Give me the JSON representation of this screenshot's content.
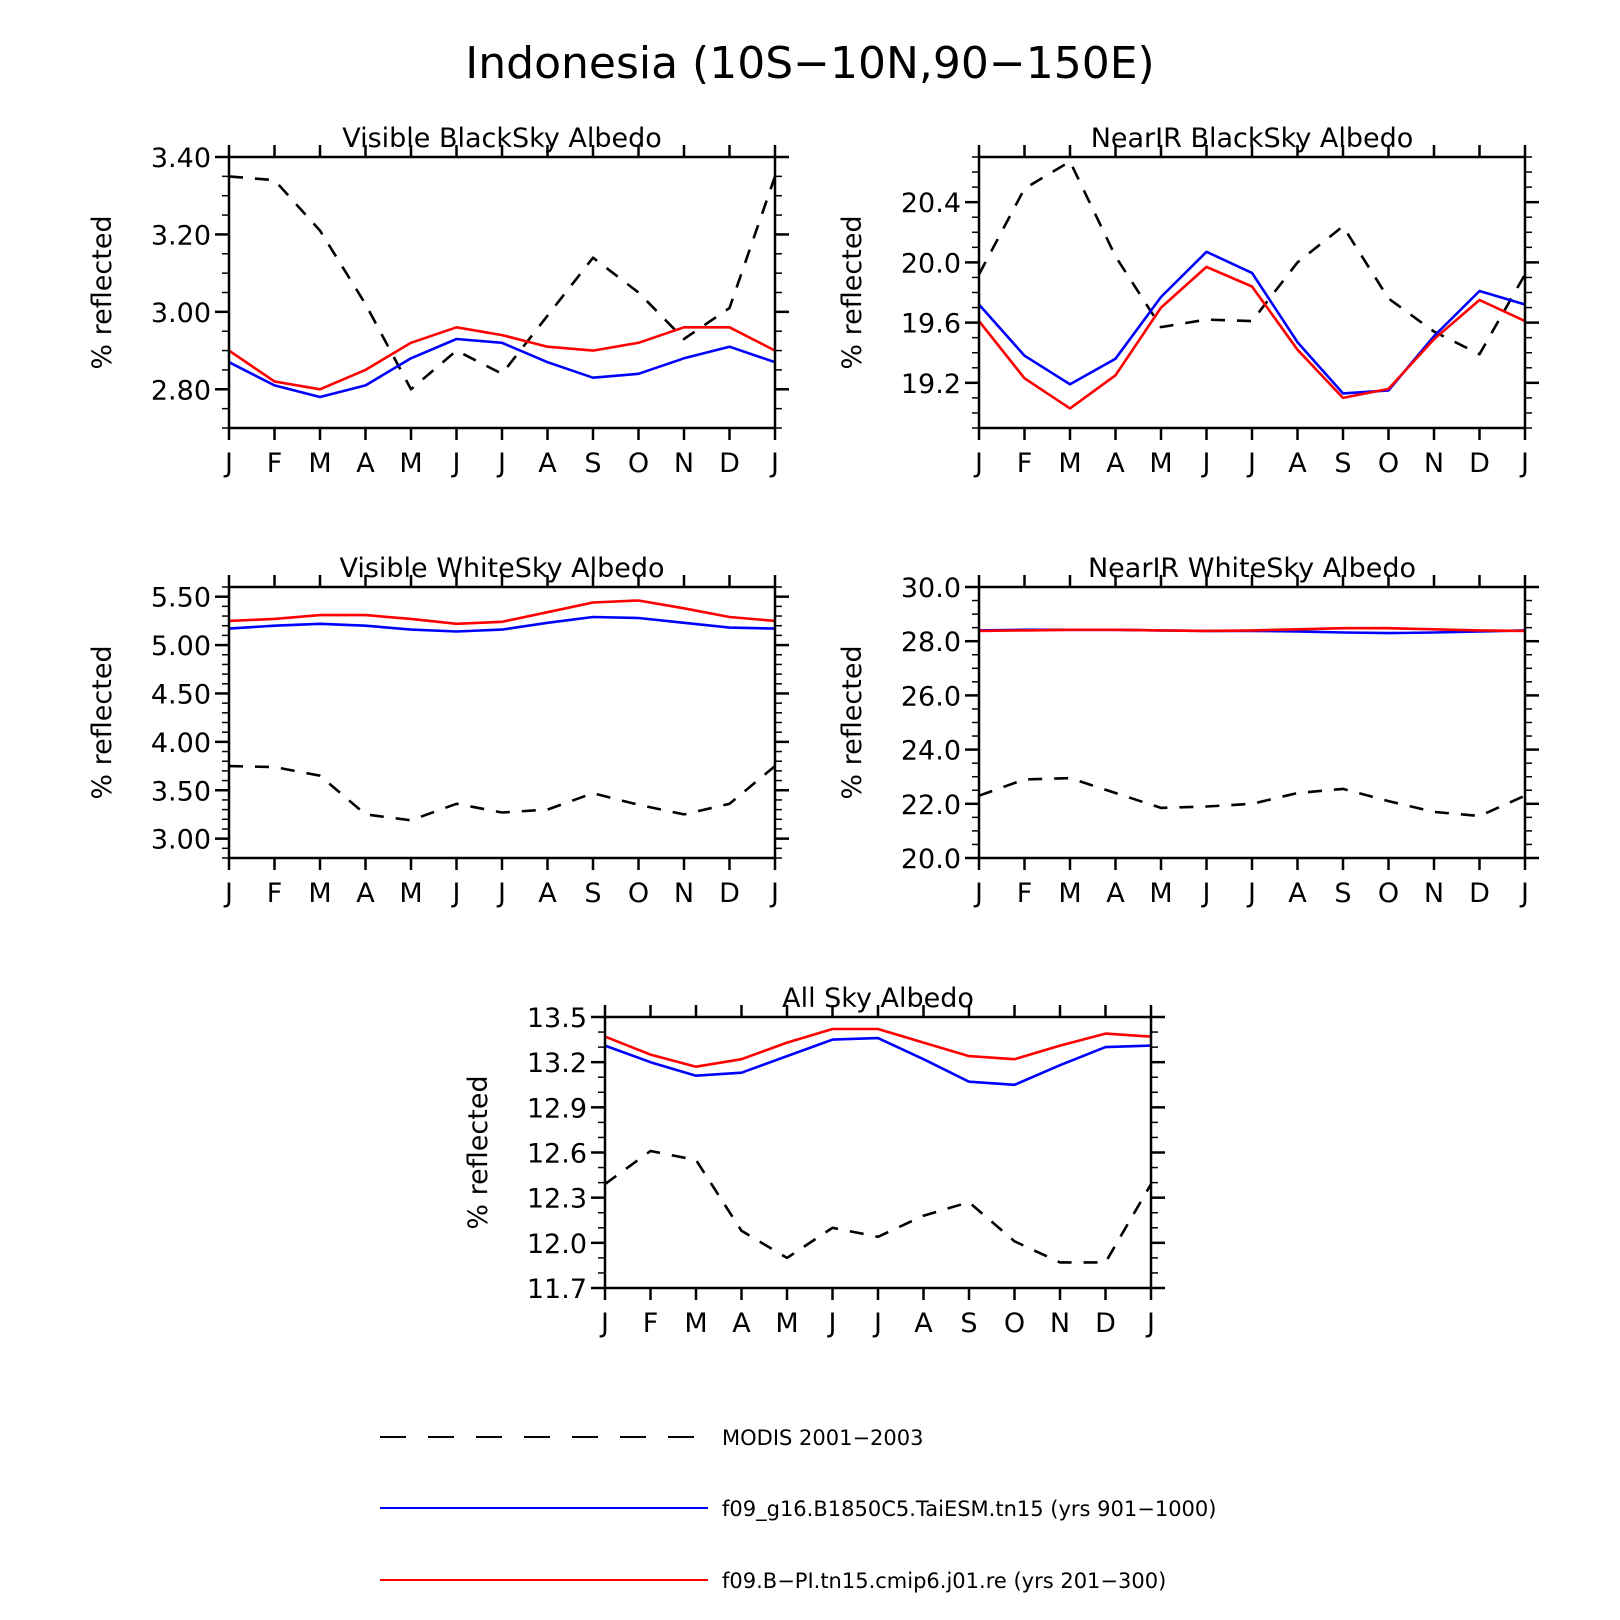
{
  "title": "Indonesia (10S−10N,90−150E)",
  "months": [
    "J",
    "F",
    "M",
    "A",
    "M",
    "J",
    "J",
    "A",
    "S",
    "O",
    "N",
    "D",
    "J"
  ],
  "series_styles": [
    {
      "color": "#000000",
      "dash": "14,12"
    },
    {
      "color": "#0000ff",
      "dash": ""
    },
    {
      "color": "#ff0000",
      "dash": ""
    }
  ],
  "legend": [
    {
      "label": "MODIS 2001−2003",
      "color": "#000000",
      "dash": "dashed"
    },
    {
      "label": "f09_g16.B1850C5.TaiESM.tn15 (yrs 901−1000)",
      "color": "#0000ff",
      "dash": "solid"
    },
    {
      "label": "f09.B−PI.tn15.cmip6.j01.re (yrs 201−300)",
      "color": "#ff0000",
      "dash": "solid"
    }
  ],
  "chart_data": [
    {
      "type": "line",
      "title": "Visible BlackSky Albedo",
      "ylabel": "% reflected",
      "ylim": [
        2.7,
        3.4
      ],
      "yticks": [
        "2.80",
        "3.00",
        "3.20",
        "3.40"
      ],
      "yminor": 0.05,
      "categories": [
        "J",
        "F",
        "M",
        "A",
        "M",
        "J",
        "J",
        "A",
        "S",
        "O",
        "N",
        "D",
        "J"
      ],
      "series": [
        {
          "name": "MODIS 2001−2003",
          "values": [
            3.35,
            3.34,
            3.21,
            3.02,
            2.8,
            2.9,
            2.84,
            2.99,
            3.14,
            3.05,
            2.93,
            3.01,
            3.35
          ]
        },
        {
          "name": "f09_g16.B1850C5.TaiESM.tn15 (yrs 901−1000)",
          "values": [
            2.87,
            2.81,
            2.78,
            2.81,
            2.88,
            2.93,
            2.92,
            2.87,
            2.83,
            2.84,
            2.88,
            2.91,
            2.87
          ]
        },
        {
          "name": "f09.B−PI.tn15.cmip6.j01.re (yrs 201−300)",
          "values": [
            2.9,
            2.82,
            2.8,
            2.85,
            2.92,
            2.96,
            2.94,
            2.91,
            2.9,
            2.92,
            2.96,
            2.96,
            2.9
          ]
        }
      ]
    },
    {
      "type": "line",
      "title": "NearIR BlackSky Albedo",
      "ylabel": "% reflected",
      "ylim": [
        18.9,
        20.7
      ],
      "yticks": [
        "19.2",
        "19.6",
        "20.0",
        "20.4"
      ],
      "yminor": 0.1,
      "categories": [
        "J",
        "F",
        "M",
        "A",
        "M",
        "J",
        "J",
        "A",
        "S",
        "O",
        "N",
        "D",
        "J"
      ],
      "series": [
        {
          "name": "MODIS 2001−2003",
          "values": [
            19.92,
            20.49,
            20.67,
            20.04,
            19.57,
            19.62,
            19.61,
            20.0,
            20.24,
            19.76,
            19.54,
            19.39,
            19.92
          ]
        },
        {
          "name": "f09_g16.B1850C5.TaiESM.tn15 (yrs 901−1000)",
          "values": [
            19.72,
            19.38,
            19.19,
            19.36,
            19.77,
            20.07,
            19.93,
            19.47,
            19.13,
            19.15,
            19.51,
            19.81,
            19.72
          ]
        },
        {
          "name": "f09.B−PI.tn15.cmip6.j01.re (yrs 201−300)",
          "values": [
            19.61,
            19.23,
            19.03,
            19.25,
            19.7,
            19.97,
            19.84,
            19.42,
            19.1,
            19.16,
            19.49,
            19.75,
            19.61
          ]
        }
      ]
    },
    {
      "type": "line",
      "title": "Visible WhiteSky Albedo",
      "ylabel": "% reflected",
      "ylim": [
        2.8,
        5.6
      ],
      "yticks": [
        "3.00",
        "3.50",
        "4.00",
        "4.50",
        "5.00",
        "5.50"
      ],
      "yminor": 0.1,
      "categories": [
        "J",
        "F",
        "M",
        "A",
        "M",
        "J",
        "J",
        "A",
        "S",
        "O",
        "N",
        "D",
        "J"
      ],
      "series": [
        {
          "name": "MODIS 2001−2003",
          "values": [
            3.75,
            3.74,
            3.65,
            3.25,
            3.19,
            3.36,
            3.27,
            3.3,
            3.47,
            3.35,
            3.25,
            3.36,
            3.75
          ]
        },
        {
          "name": "f09_g16.B1850C5.TaiESM.tn15 (yrs 901−1000)",
          "values": [
            5.17,
            5.2,
            5.22,
            5.2,
            5.16,
            5.14,
            5.16,
            5.23,
            5.29,
            5.28,
            5.23,
            5.18,
            5.17
          ]
        },
        {
          "name": "f09.B−PI.tn15.cmip6.j01.re (yrs 201−300)",
          "values": [
            5.25,
            5.27,
            5.31,
            5.31,
            5.27,
            5.22,
            5.24,
            5.34,
            5.44,
            5.46,
            5.38,
            5.29,
            5.25
          ]
        }
      ]
    },
    {
      "type": "line",
      "title": "NearIR WhiteSky Albedo",
      "ylabel": "% reflected",
      "ylim": [
        20.0,
        30.0
      ],
      "yticks": [
        "20.0",
        "22.0",
        "24.0",
        "26.0",
        "28.0",
        "30.0"
      ],
      "yminor": 0.5,
      "categories": [
        "J",
        "F",
        "M",
        "A",
        "M",
        "J",
        "J",
        "A",
        "S",
        "O",
        "N",
        "D",
        "J"
      ],
      "series": [
        {
          "name": "MODIS 2001−2003",
          "values": [
            22.3,
            22.9,
            22.95,
            22.4,
            21.85,
            21.9,
            22.0,
            22.4,
            22.55,
            22.1,
            21.7,
            21.55,
            22.3
          ]
        },
        {
          "name": "f09_g16.B1850C5.TaiESM.tn15 (yrs 901−1000)",
          "values": [
            28.4,
            28.42,
            28.42,
            28.42,
            28.4,
            28.38,
            28.38,
            28.36,
            28.32,
            28.3,
            28.32,
            28.36,
            28.4
          ]
        },
        {
          "name": "f09.B−PI.tn15.cmip6.j01.re (yrs 201−300)",
          "values": [
            28.38,
            28.4,
            28.42,
            28.42,
            28.4,
            28.38,
            28.4,
            28.44,
            28.48,
            28.48,
            28.44,
            28.4,
            28.38
          ]
        }
      ]
    },
    {
      "type": "line",
      "title": "All Sky Albedo",
      "ylabel": "% reflected",
      "ylim": [
        11.7,
        13.5
      ],
      "yticks": [
        "11.7",
        "12.0",
        "12.3",
        "12.6",
        "12.9",
        "13.2",
        "13.5"
      ],
      "yminor": 0.1,
      "categories": [
        "J",
        "F",
        "M",
        "A",
        "M",
        "J",
        "J",
        "A",
        "S",
        "O",
        "N",
        "D",
        "J"
      ],
      "series": [
        {
          "name": "MODIS 2001−2003",
          "values": [
            12.39,
            12.61,
            12.55,
            12.08,
            11.9,
            12.1,
            12.04,
            12.18,
            12.27,
            12.01,
            11.87,
            11.87,
            12.39
          ]
        },
        {
          "name": "f09_g16.B1850C5.TaiESM.tn15 (yrs 901−1000)",
          "values": [
            13.31,
            13.2,
            13.11,
            13.13,
            13.24,
            13.35,
            13.36,
            13.22,
            13.07,
            13.05,
            13.18,
            13.3,
            13.31
          ]
        },
        {
          "name": "f09.B−PI.tn15.cmip6.j01.re (yrs 201−300)",
          "values": [
            13.37,
            13.25,
            13.17,
            13.22,
            13.33,
            13.42,
            13.42,
            13.33,
            13.24,
            13.22,
            13.31,
            13.39,
            13.37
          ]
        }
      ]
    }
  ]
}
